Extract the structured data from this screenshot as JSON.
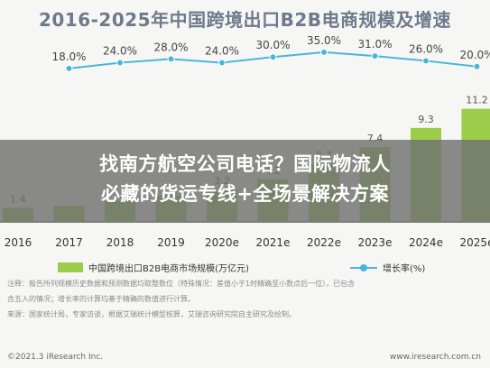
{
  "chart_data": {
    "type": "bar",
    "title": "2016-2025年中国跨境出口B2B电商规模及增速",
    "categories": [
      "2016",
      "2017",
      "2018",
      "2019",
      "2020e",
      "2021e",
      "2022e",
      "2023e",
      "2024e",
      "2025e"
    ],
    "series": [
      {
        "name": "中国跨境出口B2B电商市场规模(万亿元)",
        "type": "bar",
        "values": [
          1.4,
          1.6,
          2.1,
          2.6,
          3.2,
          4.2,
          5.7,
          7.4,
          9.3,
          11.2
        ],
        "value_labels": [
          "1.4",
          "",
          "",
          "",
          "3.2",
          "4.2",
          "5.7",
          "7.4",
          "9.3",
          "11.2"
        ]
      },
      {
        "name": "增长率(%)",
        "type": "line",
        "values": [
          18.0,
          24.0,
          28.0,
          24.0,
          30.0,
          35.0,
          31.0,
          26.0,
          20.0
        ],
        "x": [
          "2017",
          "2018",
          "2019",
          "2020e",
          "2021e",
          "2022e",
          "2023e",
          "2024e",
          "2025e"
        ],
        "value_labels": [
          "18.0%",
          "24.0%",
          "28.0%",
          "24.0%",
          "30.0%",
          "35.0%",
          "31.0%",
          "26.0%",
          "20.0%"
        ]
      }
    ],
    "legend_position": "bottom",
    "colors": {
      "bar": "#9ccd4a",
      "line": "#49b6d9"
    }
  },
  "overlay": {
    "line1": "找南方航空公司电话？国际物流人",
    "line2": "必藏的货运专线+全场景解决方案"
  },
  "notes": [
    "注释：报告所列规模历史数据和预测数据均取整数位（特殊情况：差值小于1时精确至小数点后一位），已包含",
    "含五入的情况；增长率的计算均基于精确的数值进行计算。",
    "来源：国家统计局，专家访谈，根据艾瑞统计模型核算，艾瑞咨询研究院自主研究及绘制。"
  ],
  "footer": {
    "left": "©2021.3 iResearch Inc.",
    "right": "www.iresearch.com.cn"
  }
}
